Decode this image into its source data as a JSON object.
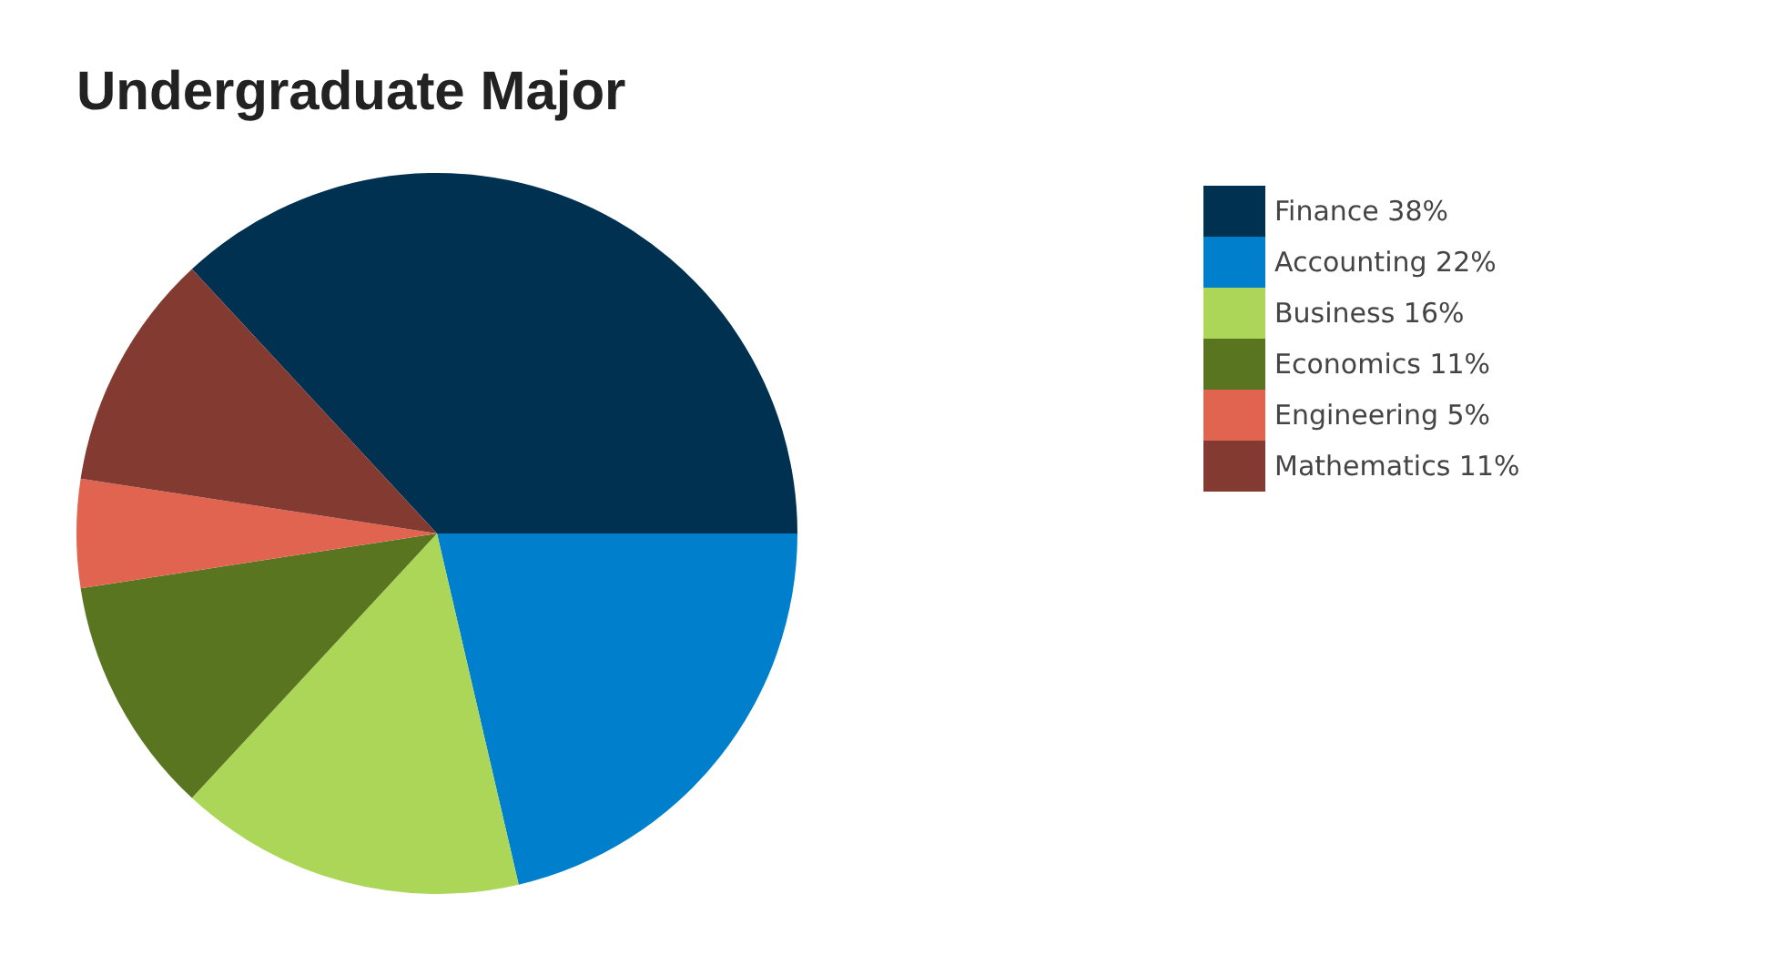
{
  "chart_data": {
    "type": "pie",
    "title": "Undergraduate Major",
    "categories": [
      "Finance",
      "Accounting",
      "Business",
      "Economics",
      "Engineering",
      "Mathematics"
    ],
    "values": [
      38,
      22,
      16,
      11,
      5,
      11
    ],
    "value_labels": [
      "38%",
      "22%",
      "16%",
      "11%",
      "5%",
      "11%"
    ],
    "colors": [
      "#003150",
      "#0080cc",
      "#acd657",
      "#5a7520",
      "#e06450",
      "#833a30"
    ],
    "legend": "right"
  }
}
